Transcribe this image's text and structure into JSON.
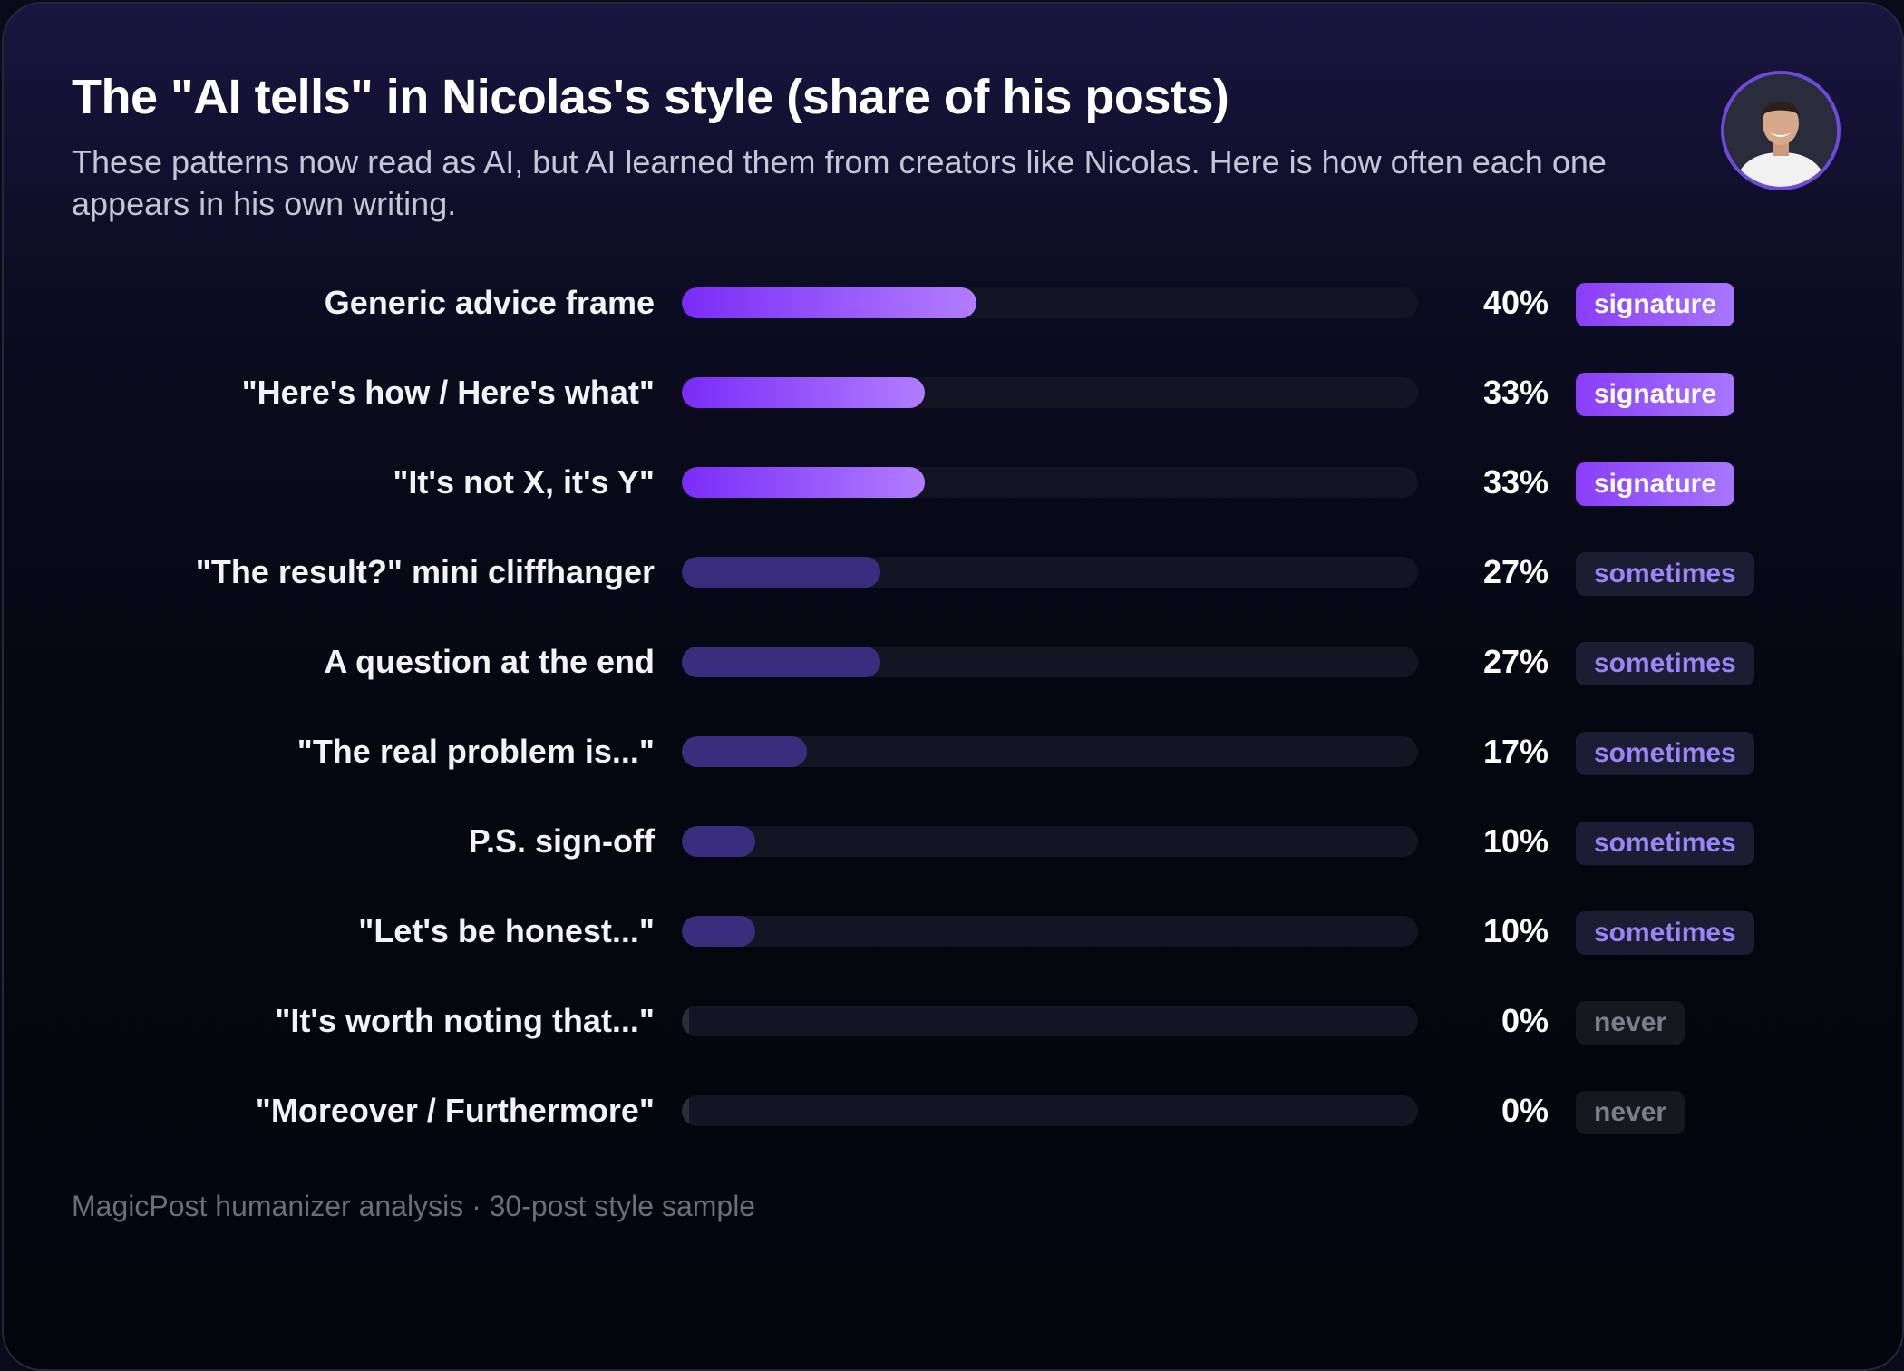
{
  "header": {
    "title": "The \"AI tells\" in Nicolas's style (share of his posts)",
    "subtitle": "These patterns now read as AI, but AI learned them from creators like Nicolas. Here is how often each one appears in his own writing."
  },
  "avatar": {
    "icon": "person-avatar-icon",
    "border_color": "#6d4bd8"
  },
  "chart_data": {
    "type": "bar",
    "orientation": "horizontal",
    "title": "The \"AI tells\" in Nicolas's style (share of his posts)",
    "xlim": [
      0,
      100
    ],
    "grid": false,
    "categories": [
      "Generic advice frame",
      "\"Here's how / Here's what\"",
      "\"It's not X, it's Y\"",
      "\"The result?\" mini cliffhanger",
      "A question at the end",
      "\"The real problem is...\"",
      "P.S. sign-off",
      "\"Let's be honest...\"",
      "\"It's worth noting that...\"",
      "\"Moreover / Furthermore\""
    ],
    "values": [
      40,
      33,
      33,
      27,
      27,
      17,
      10,
      10,
      0,
      0
    ],
    "value_labels": [
      "40%",
      "33%",
      "33%",
      "27%",
      "27%",
      "17%",
      "10%",
      "10%",
      "0%",
      "0%"
    ],
    "tiers": [
      "signature",
      "signature",
      "signature",
      "sometimes",
      "sometimes",
      "sometimes",
      "sometimes",
      "sometimes",
      "never",
      "never"
    ],
    "colors": {
      "signature": "#8a3df8",
      "sometimes": "#3b2d7d",
      "never": "#2b2d3c"
    }
  },
  "footer": {
    "text": "MagicPost humanizer analysis · 30-post style sample"
  }
}
